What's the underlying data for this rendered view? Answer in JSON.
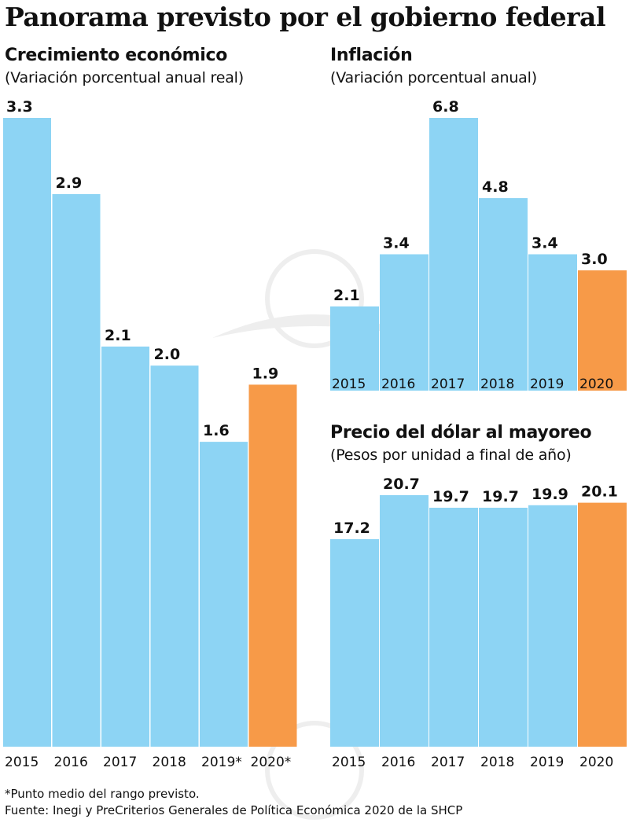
{
  "title": "Panorama previsto por el gobierno federal",
  "colors": {
    "bar": "#8dd4f4",
    "highlight": "#f79a48"
  },
  "charts": {
    "crecimiento": {
      "title": "Crecimiento económico",
      "subtitle": "(Variación porcentual anual real)"
    },
    "inflacion": {
      "title": "Inflación",
      "subtitle": "(Variación porcentual anual)"
    },
    "dolar": {
      "title": "Precio del dólar al mayoreo",
      "subtitle": "(Pesos por unidad a final de año)"
    }
  },
  "chart_data": [
    {
      "type": "bar",
      "title": "Crecimiento económico",
      "subtitle": "(Variación porcentual anual real)",
      "categories": [
        "2015",
        "2016",
        "2017",
        "2018",
        "2019*",
        "2020*"
      ],
      "values": [
        3.3,
        2.9,
        2.1,
        2.0,
        1.6,
        1.9
      ],
      "highlight_index": 5
    },
    {
      "type": "bar",
      "title": "Inflación",
      "subtitle": "(Variación porcentual anual)",
      "categories": [
        "2015",
        "2016",
        "2017",
        "2018",
        "2019",
        "2020"
      ],
      "values": [
        2.1,
        3.4,
        6.8,
        4.8,
        3.4,
        3.0
      ],
      "highlight_index": 5
    },
    {
      "type": "bar",
      "title": "Precio del dólar al mayoreo",
      "subtitle": "(Pesos por unidad a final de año)",
      "categories": [
        "2015",
        "2016",
        "2017",
        "2018",
        "2019",
        "2020"
      ],
      "values": [
        17.2,
        20.7,
        19.7,
        19.7,
        19.9,
        20.1
      ],
      "highlight_index": 5
    }
  ],
  "footnotes": {
    "note": "*Punto medio del rango previsto.",
    "source": "Fuente: Inegi y PreCriterios Generales de Política Económica 2020 de la SHCP"
  }
}
